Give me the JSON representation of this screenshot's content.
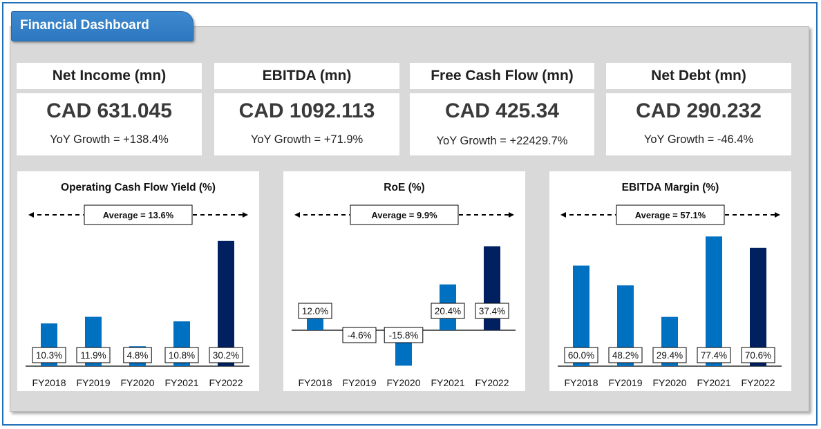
{
  "dashboard": {
    "title": "Financial Dashboard"
  },
  "kpis": [
    {
      "title": "Net Income (mn)",
      "value": "CAD 631.045",
      "yoy": "YoY Growth = +138.4%"
    },
    {
      "title": "EBITDA (mn)",
      "value": "CAD 1092.113",
      "yoy": "YoY Growth = +71.9%"
    },
    {
      "title": "Free Cash Flow (mn)",
      "value": "CAD 425.34",
      "yoy": "YoY Growth = +22429.7%"
    },
    {
      "title": "Net Debt (mn)",
      "value": "CAD 290.232",
      "yoy": "YoY Growth = -46.4%"
    }
  ],
  "colors": {
    "bar": "#0070c0",
    "bar_highlight": "#002060",
    "header": "#2e75b6"
  },
  "chart_data": [
    {
      "type": "bar",
      "title": "Operating Cash Flow Yield (%)",
      "average_label": "Average = 13.6%",
      "categories": [
        "FY2018",
        "FY2019",
        "FY2020",
        "FY2021",
        "FY2022"
      ],
      "values": [
        10.3,
        11.9,
        4.8,
        10.8,
        30.2
      ],
      "data_labels": [
        "10.3%",
        "11.9%",
        "4.8%",
        "10.8%",
        "30.2%"
      ],
      "ylim": [
        0,
        32
      ],
      "highlight_index": 4
    },
    {
      "type": "bar",
      "title": "RoE (%)",
      "average_label": "Average = 9.9%",
      "categories": [
        "FY2018",
        "FY2019",
        "FY2020",
        "FY2021",
        "FY2022"
      ],
      "values": [
        12.0,
        -4.6,
        -15.8,
        20.4,
        37.4
      ],
      "data_labels": [
        "12.0%",
        "-4.6%",
        "-15.8%",
        "20.4%",
        "37.4%"
      ],
      "ylim": [
        -16,
        40
      ],
      "highlight_index": 4
    },
    {
      "type": "bar",
      "title": "EBITDA Margin (%)",
      "average_label": "Average = 57.1%",
      "categories": [
        "FY2018",
        "FY2019",
        "FY2020",
        "FY2021",
        "FY2022"
      ],
      "values": [
        60.0,
        48.2,
        29.4,
        77.4,
        70.6
      ],
      "data_labels": [
        "60.0%",
        "48.2%",
        "29.4%",
        "77.4%",
        "70.6%"
      ],
      "ylim": [
        0,
        80
      ],
      "highlight_index": 4
    }
  ]
}
